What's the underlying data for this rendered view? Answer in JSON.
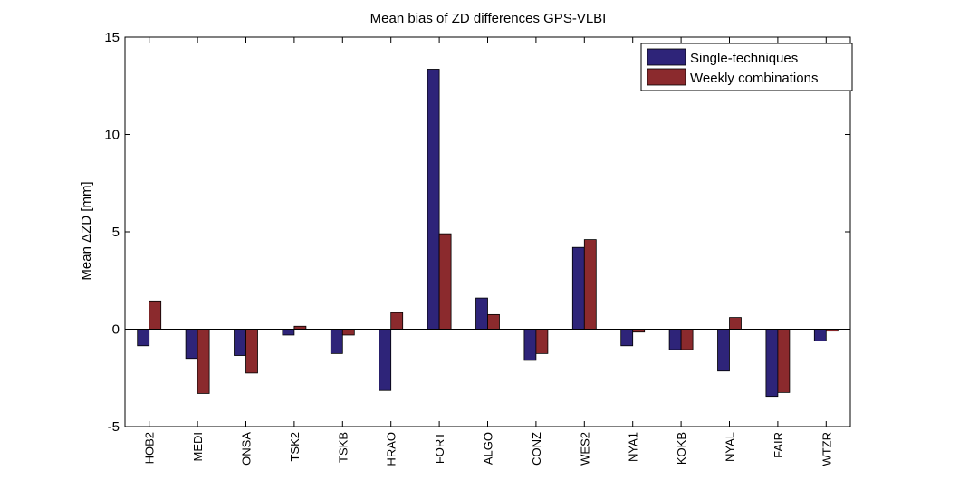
{
  "chart_data": {
    "type": "bar",
    "title": "Mean bias of ZD differences GPS-VLBI",
    "xlabel": "",
    "ylabel": "Mean ΔZD [mm]",
    "ylim": [
      -5,
      15
    ],
    "yticks": [
      "-5",
      "0",
      "5",
      "10",
      "15"
    ],
    "grid": false,
    "legend_position": "top-right",
    "categories": [
      "HOB2",
      "MEDI",
      "ONSA",
      "TSK2",
      "TSKB",
      "HRAO",
      "FORT",
      "ALGO",
      "CONZ",
      "WES2",
      "NYA1",
      "KOKB",
      "NYAL",
      "FAIR",
      "WTZR"
    ],
    "series": [
      {
        "name": "Single-techniques",
        "color": "#2e2479",
        "values": [
          -0.85,
          -1.5,
          -1.35,
          -0.3,
          -1.25,
          -3.15,
          13.35,
          1.6,
          -1.6,
          4.2,
          -0.85,
          -1.05,
          -2.15,
          -3.45,
          -0.6
        ]
      },
      {
        "name": "Weekly combinations",
        "color": "#8b2a2d",
        "values": [
          1.45,
          -3.3,
          -2.25,
          0.15,
          -0.3,
          0.85,
          4.9,
          0.75,
          -1.25,
          4.6,
          -0.15,
          -1.05,
          0.6,
          -3.25,
          -0.1
        ]
      }
    ]
  }
}
